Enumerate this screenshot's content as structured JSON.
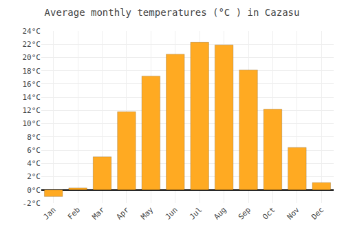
{
  "chart_data": {
    "type": "bar",
    "title": "Average monthly temperatures (°C ) in Cazasu",
    "categories": [
      "Jan",
      "Feb",
      "Mar",
      "Apr",
      "May",
      "Jun",
      "Jul",
      "Aug",
      "Sep",
      "Oct",
      "Nov",
      "Dec"
    ],
    "values": [
      -1.0,
      0.3,
      5.0,
      11.8,
      17.2,
      20.5,
      22.3,
      21.9,
      18.1,
      12.2,
      6.4,
      1.1
    ],
    "color": "#FFAA22",
    "ylim": [
      -2,
      24
    ],
    "yticks": [
      {
        "value": -2,
        "label": "-2°C"
      },
      {
        "value": 0,
        "label": "0°C"
      },
      {
        "value": 2,
        "label": "2°C"
      },
      {
        "value": 4,
        "label": "4°C"
      },
      {
        "value": 6,
        "label": "6°C"
      },
      {
        "value": 8,
        "label": "8°C"
      },
      {
        "value": 10,
        "label": "10°C"
      },
      {
        "value": 12,
        "label": "12°C"
      },
      {
        "value": 14,
        "label": "14°C"
      },
      {
        "value": 16,
        "label": "16°C"
      },
      {
        "value": 18,
        "label": "18°C"
      },
      {
        "value": 20,
        "label": "20°C"
      },
      {
        "value": 22,
        "label": "22°C"
      },
      {
        "value": 24,
        "label": "24°C"
      }
    ],
    "grid": true
  }
}
